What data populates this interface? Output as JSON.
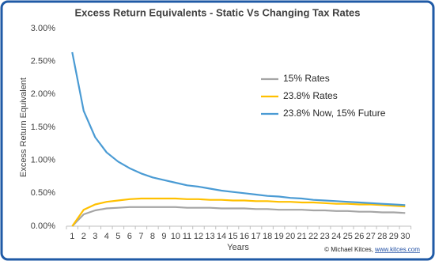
{
  "chart_data": {
    "type": "line",
    "title": "Excess Return Equivalents - Static Vs Changing Tax Rates",
    "y_label": "Excess Return Equivalent",
    "x_label": "Years",
    "source": "© Michael Kitces,",
    "source_link": "www.kitces.com",
    "categories": [
      1,
      2,
      3,
      4,
      5,
      6,
      7,
      8,
      9,
      10,
      11,
      12,
      13,
      14,
      15,
      16,
      17,
      18,
      19,
      20,
      21,
      22,
      23,
      24,
      25,
      26,
      27,
      28,
      29,
      30
    ],
    "ylim": [
      0,
      3
    ],
    "yticks": [
      {
        "value": 0,
        "label": "0.00%"
      },
      {
        "value": 0.5,
        "label": "0.50%"
      },
      {
        "value": 1,
        "label": "1.00%"
      },
      {
        "value": 1.5,
        "label": "1.50%"
      },
      {
        "value": 2,
        "label": "2.00%"
      },
      {
        "value": 2.5,
        "label": "2.50%"
      },
      {
        "value": 3,
        "label": "3.00%"
      }
    ],
    "series": [
      {
        "name": "15% Rates",
        "color": "#a5a5a5",
        "values": [
          0,
          0.18,
          0.24,
          0.27,
          0.28,
          0.29,
          0.29,
          0.29,
          0.29,
          0.29,
          0.28,
          0.28,
          0.28,
          0.27,
          0.27,
          0.27,
          0.26,
          0.26,
          0.25,
          0.25,
          0.25,
          0.24,
          0.24,
          0.23,
          0.23,
          0.22,
          0.22,
          0.21,
          0.21,
          0.2
        ]
      },
      {
        "name": "23.8% Rates",
        "color": "#ffc000",
        "values": [
          0,
          0.25,
          0.33,
          0.37,
          0.39,
          0.41,
          0.42,
          0.42,
          0.42,
          0.42,
          0.41,
          0.41,
          0.4,
          0.4,
          0.39,
          0.39,
          0.38,
          0.38,
          0.37,
          0.37,
          0.36,
          0.36,
          0.35,
          0.34,
          0.34,
          0.33,
          0.33,
          0.32,
          0.31,
          0.3
        ]
      },
      {
        "name": "23.8% Now, 15% Future",
        "color": "#4a9bd4",
        "values": [
          2.64,
          1.75,
          1.35,
          1.12,
          0.98,
          0.88,
          0.8,
          0.74,
          0.7,
          0.66,
          0.62,
          0.6,
          0.57,
          0.54,
          0.52,
          0.5,
          0.48,
          0.46,
          0.45,
          0.43,
          0.42,
          0.4,
          0.39,
          0.38,
          0.37,
          0.36,
          0.35,
          0.34,
          0.33,
          0.32
        ]
      }
    ]
  }
}
